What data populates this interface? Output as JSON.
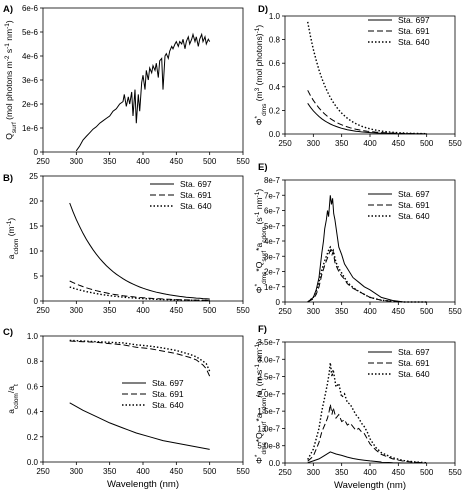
{
  "chart_data": [
    {
      "panel": "A)",
      "type": "line",
      "ylabel": "Q_surf (mol photons m^-2 s^-1 nm^-1)",
      "xlim": [
        250,
        550
      ],
      "xticks": [
        250,
        300,
        350,
        400,
        450,
        500,
        550
      ],
      "ylim": [
        0,
        6e-06
      ],
      "yticks": [
        "0",
        "1e-6",
        "2e-6",
        "3e-6",
        "4e-6",
        "5e-6",
        "6e-6"
      ],
      "series": [
        {
          "style": "solid",
          "x": [
            300,
            305,
            310,
            315,
            320,
            325,
            330,
            335,
            340,
            345,
            350,
            355,
            360,
            365,
            370,
            372,
            375,
            378,
            380,
            383,
            385,
            388,
            390,
            393,
            395,
            398,
            400,
            403,
            405,
            408,
            410,
            413,
            415,
            418,
            420,
            423,
            425,
            428,
            430,
            433,
            435,
            438,
            440,
            443,
            445,
            448,
            450,
            453,
            455,
            458,
            460,
            463,
            465,
            468,
            470,
            473,
            475,
            478,
            480,
            483,
            485,
            488,
            490,
            493,
            495,
            498,
            500
          ],
          "y": [
            5e-08,
            2.5e-07,
            5e-07,
            6.5e-07,
            8e-07,
            9.5e-07,
            1.05e-06,
            1.2e-06,
            1.3e-06,
            1.4e-06,
            1.5e-06,
            1.7e-06,
            1.8e-06,
            2e-06,
            2.1e-06,
            2.4e-06,
            1.9e-06,
            2.3e-06,
            2e-06,
            2.5e-06,
            1.5e-06,
            2.6e-06,
            1.2e-06,
            2.4e-06,
            1.7e-06,
            2.9e-06,
            3.2e-06,
            2.6e-06,
            3.4e-06,
            3e-06,
            3.5e-06,
            3.3e-06,
            3.6e-06,
            3.4e-06,
            3.7e-06,
            3.1e-06,
            3.8e-06,
            3.9e-06,
            2.6e-06,
            4e-06,
            4.1e-06,
            3.9e-06,
            4.2e-06,
            4.4e-06,
            4.3e-06,
            4.5e-06,
            4.6e-06,
            4.4e-06,
            4.6e-06,
            4.5e-06,
            4.7e-06,
            4.3e-06,
            4.6e-06,
            4.8e-06,
            4.5e-06,
            4.7e-06,
            4.9e-06,
            4.6e-06,
            4.8e-06,
            4.4e-06,
            4.7e-06,
            4.9e-06,
            4.6e-06,
            4.8e-06,
            4.5e-06,
            4.7e-06,
            4.6e-06
          ]
        }
      ]
    },
    {
      "panel": "B)",
      "type": "line",
      "ylabel": "a_cdom (m^-1)",
      "xlim": [
        250,
        550
      ],
      "xticks": [
        250,
        300,
        350,
        400,
        450,
        500,
        550
      ],
      "ylim": [
        0,
        25
      ],
      "yticks": [
        "0",
        "5",
        "10",
        "15",
        "20",
        "25"
      ],
      "legend": [
        "Sta. 697",
        "Sta. 691",
        "Sta. 640"
      ],
      "series": [
        {
          "name": "Sta. 697",
          "style": "solid",
          "model": "exp",
          "a0": 19.6,
          "s": 0.0185,
          "x0": 290,
          "x1": 500
        },
        {
          "name": "Sta. 691",
          "style": "dashed",
          "model": "exp",
          "a0": 4.0,
          "s": 0.0165,
          "x0": 290,
          "x1": 500
        },
        {
          "name": "Sta. 640",
          "style": "dotted",
          "model": "exp",
          "a0": 2.8,
          "s": 0.016,
          "x0": 290,
          "x1": 500
        }
      ]
    },
    {
      "panel": "C)",
      "type": "line",
      "ylabel": "a_cdom/a_t",
      "xlim": [
        250,
        550
      ],
      "xticks": [
        250,
        300,
        350,
        400,
        450,
        500,
        550
      ],
      "ylim": [
        0,
        1.0
      ],
      "yticks": [
        "0.0",
        "0.2",
        "0.4",
        "0.6",
        "0.8",
        "1.0"
      ],
      "legend": [
        "Sta. 697",
        "Sta. 691",
        "Sta. 640"
      ],
      "series": [
        {
          "name": "Sta. 697",
          "style": "solid",
          "x": [
            290,
            310,
            330,
            350,
            370,
            390,
            410,
            430,
            450,
            470,
            490,
            500
          ],
          "y": [
            0.47,
            0.41,
            0.36,
            0.31,
            0.27,
            0.23,
            0.2,
            0.17,
            0.15,
            0.13,
            0.11,
            0.1
          ]
        },
        {
          "name": "Sta. 691",
          "style": "dashed",
          "x": [
            290,
            310,
            330,
            350,
            370,
            390,
            410,
            430,
            450,
            470,
            480,
            490,
            495,
            500
          ],
          "y": [
            0.96,
            0.955,
            0.95,
            0.94,
            0.93,
            0.91,
            0.9,
            0.88,
            0.86,
            0.83,
            0.81,
            0.77,
            0.74,
            0.68
          ]
        },
        {
          "name": "Sta. 640",
          "style": "dotted",
          "x": [
            290,
            310,
            330,
            350,
            370,
            390,
            410,
            430,
            450,
            470,
            480,
            490,
            495,
            500
          ],
          "y": [
            0.965,
            0.96,
            0.955,
            0.95,
            0.945,
            0.93,
            0.92,
            0.905,
            0.885,
            0.855,
            0.835,
            0.8,
            0.78,
            0.72
          ]
        }
      ]
    },
    {
      "panel": "D)",
      "type": "line",
      "ylabel": "Φ*_dms (m^3 (mol photons)^-1)",
      "xlim": [
        250,
        550
      ],
      "xticks": [
        250,
        300,
        350,
        400,
        450,
        500,
        550
      ],
      "ylim": [
        0,
        1.0
      ],
      "yticks": [
        "0.0",
        "0.2",
        "0.4",
        "0.6",
        "0.8",
        "1.0"
      ],
      "legend": [
        "Sta. 697",
        "Sta. 691",
        "Sta. 640"
      ],
      "series": [
        {
          "name": "Sta. 697",
          "style": "solid",
          "model": "exp",
          "a0": 0.26,
          "s": 0.028,
          "x0": 290,
          "x1": 500
        },
        {
          "name": "Sta. 691",
          "style": "dashed",
          "model": "exp",
          "a0": 0.37,
          "s": 0.026,
          "x0": 290,
          "x1": 500
        },
        {
          "name": "Sta. 640",
          "style": "dotted",
          "model": "exp",
          "a0": 0.95,
          "s": 0.028,
          "x0": 290,
          "x1": 500
        }
      ]
    },
    {
      "panel": "E)",
      "type": "line",
      "ylabel": "Φ*_dms*Q_surf*a_cdom (s^-1 nm^-1)",
      "xlim": [
        250,
        550
      ],
      "xticks": [
        250,
        300,
        350,
        400,
        450,
        500,
        550
      ],
      "ylim": [
        0,
        8e-07
      ],
      "yticks": [
        "0",
        "1e-7",
        "2e-7",
        "3e-7",
        "4e-7",
        "5e-7",
        "6e-7",
        "7e-7",
        "8e-7"
      ],
      "legend": [
        "Sta. 697",
        "Sta. 691",
        "Sta. 640"
      ],
      "series": [
        {
          "name": "Sta. 697",
          "style": "solid",
          "x": [
            290,
            300,
            305,
            310,
            315,
            318,
            320,
            323,
            325,
            327,
            330,
            332,
            334,
            336,
            338,
            340,
            345,
            350,
            355,
            360,
            370,
            380,
            390,
            400,
            420,
            440,
            460,
            480,
            500
          ],
          "y": [
            0,
            3e-08,
            8e-08,
            1.6e-07,
            3.2e-07,
            4e-07,
            4.8e-07,
            5.4e-07,
            6e-07,
            5.6e-07,
            7e-07,
            6.4e-07,
            6.8e-07,
            5.8e-07,
            5.4e-07,
            4.9e-07,
            3.6e-07,
            3.1e-07,
            2.5e-07,
            2.2e-07,
            1.6e-07,
            1.3e-07,
            1e-07,
            8e-08,
            3e-08,
            1e-08,
            0,
            0,
            0
          ]
        },
        {
          "name": "Sta. 691",
          "style": "dashed",
          "x": [
            290,
            300,
            305,
            310,
            315,
            320,
            325,
            328,
            330,
            333,
            335,
            338,
            340,
            345,
            350,
            355,
            360,
            370,
            380,
            390,
            400,
            420,
            440,
            460,
            480,
            500
          ],
          "y": [
            0,
            2e-08,
            5e-08,
            1e-07,
            1.8e-07,
            2.4e-07,
            2.9e-07,
            3.2e-07,
            3.4e-07,
            3.1e-07,
            3.3e-07,
            2.6e-07,
            2.4e-07,
            2e-07,
            1.7e-07,
            1.5e-07,
            1.2e-07,
            9e-08,
            7e-08,
            5e-08,
            3e-08,
            1.2e-08,
            4e-09,
            0,
            0,
            0
          ]
        },
        {
          "name": "Sta. 640",
          "style": "dotted",
          "x": [
            290,
            300,
            305,
            310,
            315,
            320,
            325,
            328,
            330,
            333,
            335,
            338,
            340,
            345,
            350,
            355,
            360,
            370,
            380,
            390,
            400,
            420,
            440,
            460,
            480,
            500
          ],
          "y": [
            0,
            3e-08,
            7e-08,
            1.3e-07,
            2.1e-07,
            2.7e-07,
            3.2e-07,
            3.5e-07,
            3.6e-07,
            3.3e-07,
            3.4e-07,
            2.9e-07,
            2.6e-07,
            2.2e-07,
            1.9e-07,
            1.6e-07,
            1.3e-07,
            9.5e-08,
            7e-08,
            5e-08,
            3e-08,
            1.2e-08,
            4e-09,
            0,
            0,
            0
          ]
        }
      ]
    },
    {
      "panel": "F)",
      "type": "line",
      "ylabel": "Φ*_dms*Q_surf*a_cdom/a_t (m s^-1 nm^-1)",
      "xlabel": "Wavelength (nm)",
      "xlim": [
        250,
        550
      ],
      "xticks": [
        250,
        300,
        350,
        400,
        450,
        500,
        550
      ],
      "ylim": [
        0,
        3.5e-07
      ],
      "yticks": [
        "0.0",
        "5.0e-8",
        "1.0e-7",
        "1.5e-7",
        "2.0e-7",
        "2.5e-7",
        "3.0e-7",
        "3.5e-7"
      ],
      "legend": [
        "Sta. 697",
        "Sta. 691",
        "Sta. 640"
      ],
      "series": [
        {
          "name": "Sta. 697",
          "style": "solid",
          "x": [
            290,
            300,
            310,
            320,
            330,
            340,
            350,
            360,
            370,
            380,
            390,
            400,
            420,
            440,
            460,
            480,
            500
          ],
          "y": [
            1e-09,
            6e-09,
            1.2e-08,
            2.2e-08,
            3.2e-08,
            2.6e-08,
            2.2e-08,
            1.7e-08,
            1.3e-08,
            1e-08,
            8e-09,
            6e-09,
            3e-09,
            1e-09,
            0,
            0,
            0
          ]
        },
        {
          "name": "Sta. 691",
          "style": "dashed",
          "x": [
            290,
            300,
            305,
            310,
            315,
            320,
            325,
            328,
            330,
            333,
            335,
            340,
            345,
            350,
            355,
            360,
            365,
            370,
            375,
            380,
            385,
            390,
            395,
            400,
            410,
            420,
            440,
            460,
            480,
            500
          ],
          "y": [
            5e-09,
            2e-08,
            4e-08,
            6e-08,
            9e-08,
            1.1e-07,
            1.3e-07,
            1.5e-07,
            1.7e-07,
            1.4e-07,
            1.6e-07,
            1.3e-07,
            1.4e-07,
            1.2e-07,
            1.25e-07,
            1.1e-07,
            1.15e-07,
            1.05e-07,
            9.5e-08,
            1e-07,
            9e-08,
            8.5e-08,
            7e-08,
            5.5e-08,
            3.8e-08,
            2.5e-08,
            1.2e-08,
            5e-09,
            2e-09,
            0
          ]
        },
        {
          "name": "Sta. 640",
          "style": "dotted",
          "x": [
            290,
            300,
            305,
            310,
            315,
            320,
            325,
            328,
            330,
            333,
            335,
            340,
            345,
            350,
            355,
            360,
            365,
            370,
            375,
            380,
            385,
            390,
            395,
            400,
            410,
            420,
            440,
            460,
            480,
            500
          ],
          "y": [
            1e-08,
            4e-08,
            7e-08,
            1e-07,
            1.5e-07,
            1.9e-07,
            2.3e-07,
            2.6e-07,
            2.9e-07,
            2.5e-07,
            2.7e-07,
            2.2e-07,
            2.3e-07,
            1.9e-07,
            2e-07,
            1.75e-07,
            1.7e-07,
            1.55e-07,
            1.4e-07,
            1.3e-07,
            1.15e-07,
            1.05e-07,
            9e-08,
            7e-08,
            4.5e-08,
            3e-08,
            1.5e-08,
            7e-09,
            3e-09,
            1e-09
          ]
        }
      ]
    }
  ]
}
